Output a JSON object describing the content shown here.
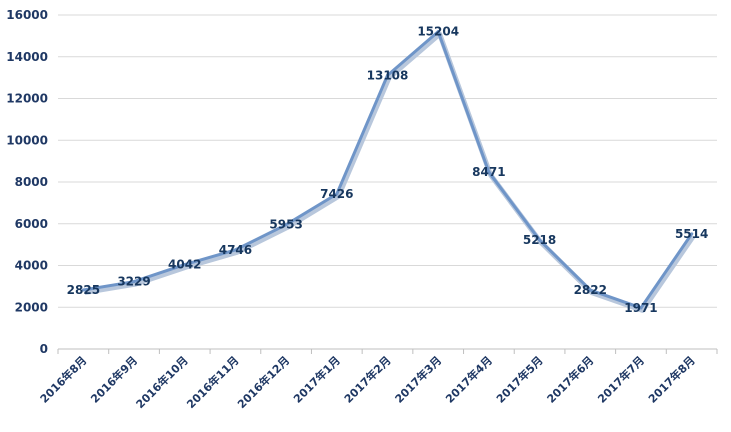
{
  "chart_data": {
    "type": "line",
    "title": "",
    "xlabel": "",
    "ylabel": "",
    "categories": [
      "2016年8月",
      "2016年9月",
      "2016年10月",
      "2016年11月",
      "2016年12月",
      "2017年1月",
      "2017年2月",
      "2017年3月",
      "2017年4月",
      "2017年5月",
      "2017年6月",
      "2017年7月",
      "2017年8月"
    ],
    "series": [
      {
        "values": [
          2825,
          3229,
          4042,
          4746,
          5953,
          7426,
          13108,
          15204,
          8471,
          5218,
          2822,
          1971,
          5514
        ]
      }
    ],
    "ylim": [
      0,
      16000
    ],
    "yticks": [
      0,
      2000,
      4000,
      6000,
      8000,
      10000,
      12000,
      14000,
      16000
    ],
    "grid": true,
    "legend": "none",
    "data_labels": true,
    "colors": {
      "line": "#6f95c8",
      "line_shadow": "#b8c7dc",
      "grid": "#d9d9d9",
      "axis": "#bfbfbf",
      "text": "#1f3864"
    }
  }
}
